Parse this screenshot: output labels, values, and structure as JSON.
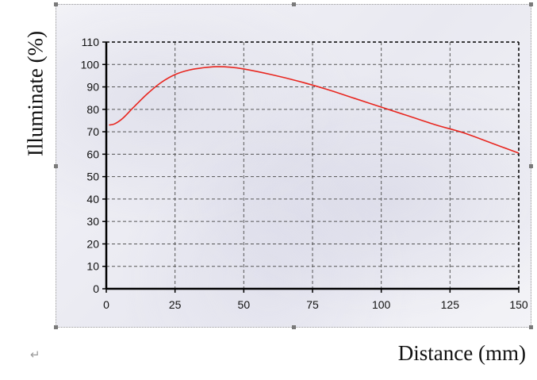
{
  "chart_data": {
    "type": "line",
    "title": "",
    "xlabel": "Distance (mm)",
    "ylabel": "Illuminate (%)",
    "xlim": [
      0,
      150
    ],
    "ylim": [
      0,
      110
    ],
    "x_ticks": [
      "0",
      "25",
      "50",
      "75",
      "100",
      "125",
      "150"
    ],
    "y_ticks": [
      "0",
      "10",
      "20",
      "30",
      "40",
      "50",
      "60",
      "70",
      "80",
      "90",
      "100",
      "110"
    ],
    "grid": true,
    "series": [
      {
        "color": "#e8261f",
        "x": [
          1,
          3,
          6,
          10,
          15,
          20,
          25,
          30,
          35,
          40,
          45,
          50,
          60,
          70,
          80,
          90,
          100,
          110,
          120,
          130,
          140,
          150
        ],
        "y": [
          73,
          73.5,
          76,
          81,
          87,
          92,
          95.5,
          97.5,
          98.5,
          99,
          98.8,
          98,
          95.5,
          92.5,
          89,
          85,
          81,
          77,
          73,
          69.5,
          65,
          60.5
        ]
      }
    ]
  },
  "colors": {
    "line": "#e8261f",
    "grid": "#555555",
    "axis": "#000000"
  },
  "paragraph_mark": "↵"
}
